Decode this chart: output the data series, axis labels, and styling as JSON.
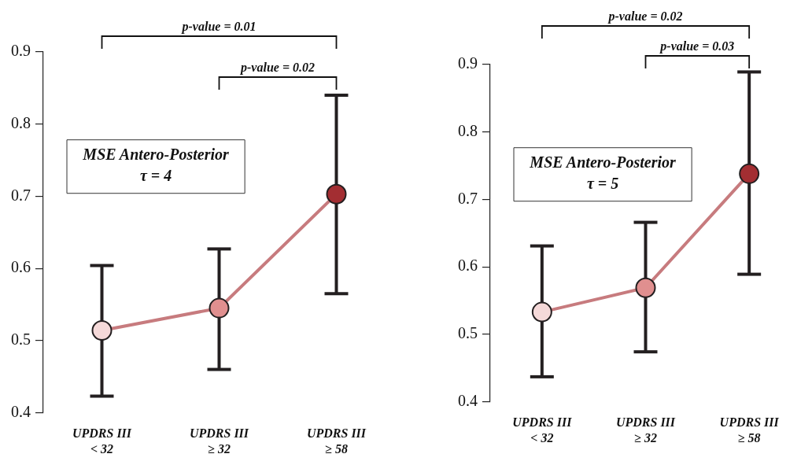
{
  "chart_data": [
    {
      "type": "line",
      "title": "MSE Antero-Posterior\nτ = 4",
      "categories": [
        "UPDRS III\n< 32",
        "UPDRS III\n≥ 32",
        "UPDRS III\n≥ 58"
      ],
      "values": [
        0.514,
        0.545,
        0.703
      ],
      "errors": [
        [
          0.423,
          0.604
        ],
        [
          0.46,
          0.627
        ],
        [
          0.565,
          0.84
        ]
      ],
      "colors": [
        "#f5d9d9",
        "#e08f8f",
        "#a32e32"
      ],
      "color": "#c77b7e",
      "ylim": [
        0.4,
        0.9
      ],
      "yticks": [
        0.4,
        0.5,
        0.6,
        0.7,
        0.8,
        0.9
      ],
      "grid": false,
      "marker": "circle",
      "annotations": [
        "p-value = 0.01",
        "p-value = 0.02"
      ]
    },
    {
      "type": "line",
      "title": "MSE Antero-Posterior\nτ = 5",
      "categories": [
        "UPDRS III\n< 32",
        "UPDRS III\n≥ 32",
        "UPDRS III\n≥ 58"
      ],
      "values": [
        0.533,
        0.569,
        0.738
      ],
      "errors": [
        [
          0.437,
          0.631
        ],
        [
          0.474,
          0.666
        ],
        [
          0.589,
          0.889
        ]
      ],
      "colors": [
        "#f5d9d9",
        "#e08f8f",
        "#a32e32"
      ],
      "color": "#c77b7e",
      "ylim": [
        0.4,
        0.9
      ],
      "yticks": [
        0.4,
        0.5,
        0.6,
        0.7,
        0.8,
        0.9
      ],
      "grid": false,
      "marker": "circle",
      "annotations": [
        "p-value = 0.02",
        "p-value = 0.03"
      ]
    }
  ]
}
